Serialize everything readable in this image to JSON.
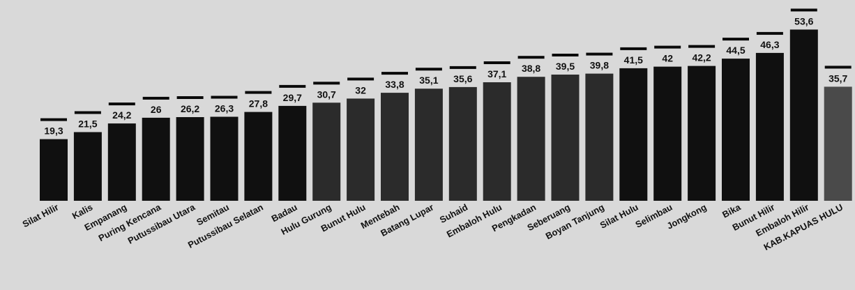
{
  "chart_data": {
    "type": "bar",
    "title": "",
    "xlabel": "",
    "ylabel": "",
    "ylim": [
      0,
      55
    ],
    "grid": false,
    "legend": "none",
    "categories": [
      "Silat Hilir",
      "Kalis",
      "Empanang",
      "Puring Kencana",
      "Putussibau Utara",
      "Semitau",
      "Putussibau Selatan",
      "Badau",
      "Hulu Gurung",
      "Bunut Hulu",
      "Mentebah",
      "Batang Lupar",
      "Suhaid",
      "Embaloh Hulu",
      "Pengkadan",
      "Seberuang",
      "Boyan Tanjung",
      "Silat Hulu",
      "Selimbau",
      "Jongkong",
      "Bika",
      "Bunut Hilir",
      "Embaloh Hilir",
      "KAB.KAPUAS HULU"
    ],
    "values": [
      19.3,
      21.5,
      24.2,
      26,
      26.2,
      26.3,
      27.8,
      29.7,
      30.7,
      32,
      33.8,
      35.1,
      35.6,
      37.1,
      38.8,
      39.5,
      39.8,
      41.5,
      42,
      42.2,
      44.5,
      46.3,
      53.6,
      35.7
    ],
    "value_labels": [
      "19,3",
      "21,5",
      "24,2",
      "26",
      "26,2",
      "26,3",
      "27,8",
      "29,7",
      "30,7",
      "32",
      "33,8",
      "35,1",
      "35,6",
      "37,1",
      "38,8",
      "39,5",
      "39,8",
      "41,5",
      "42",
      "42,2",
      "44,5",
      "46,3",
      "53,6",
      "35,7"
    ],
    "bar_tones": [
      "dark",
      "dark",
      "dark",
      "dark",
      "dark",
      "dark",
      "dark",
      "dark",
      "mid",
      "mid",
      "mid",
      "mid",
      "mid",
      "mid",
      "mid",
      "mid",
      "mid",
      "dark",
      "dark",
      "dark",
      "dark",
      "dark",
      "dark",
      "light"
    ],
    "colors": {
      "background": "#d9d9d9",
      "dark": "#101010",
      "mid": "#2b2b2b",
      "light": "#4a4a4a",
      "cap": "#0a0a0a",
      "label_text": "#111111"
    }
  }
}
